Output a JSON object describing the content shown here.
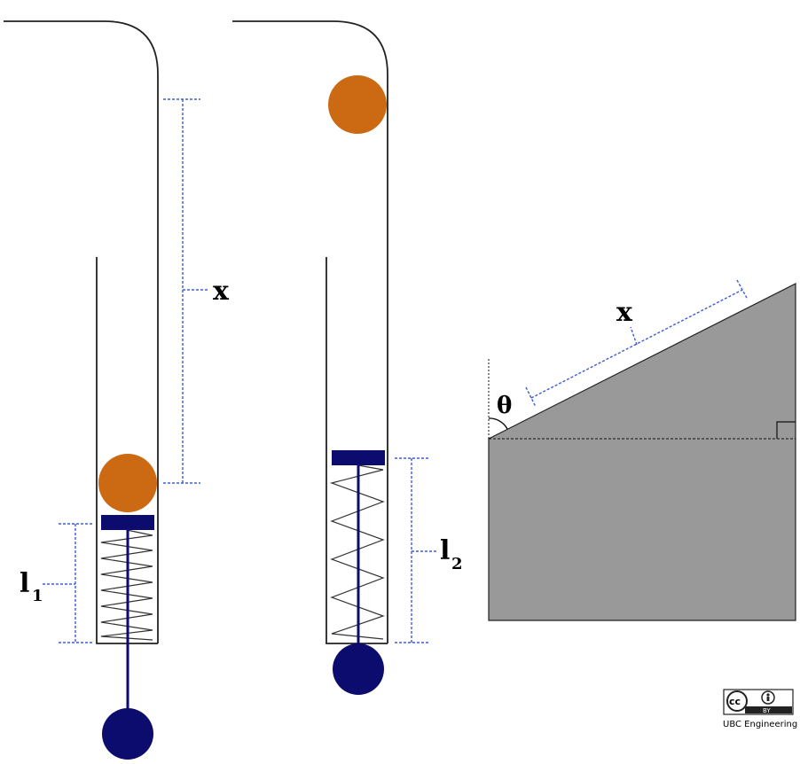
{
  "labels": {
    "left_x": "x",
    "l1_main": "l",
    "l1_sub": "1",
    "l2_main": "l",
    "l2_sub": "2",
    "ramp_x": "x",
    "theta": "θ"
  },
  "badge": {
    "cc": "cc",
    "by": "BY",
    "org": "UBC Engineering"
  },
  "colors": {
    "ball": "#cc6a14",
    "plunger": "#0c0c6e",
    "measure": "#3d5bd8",
    "ramp_fill": "#999999",
    "line": "#222222"
  }
}
